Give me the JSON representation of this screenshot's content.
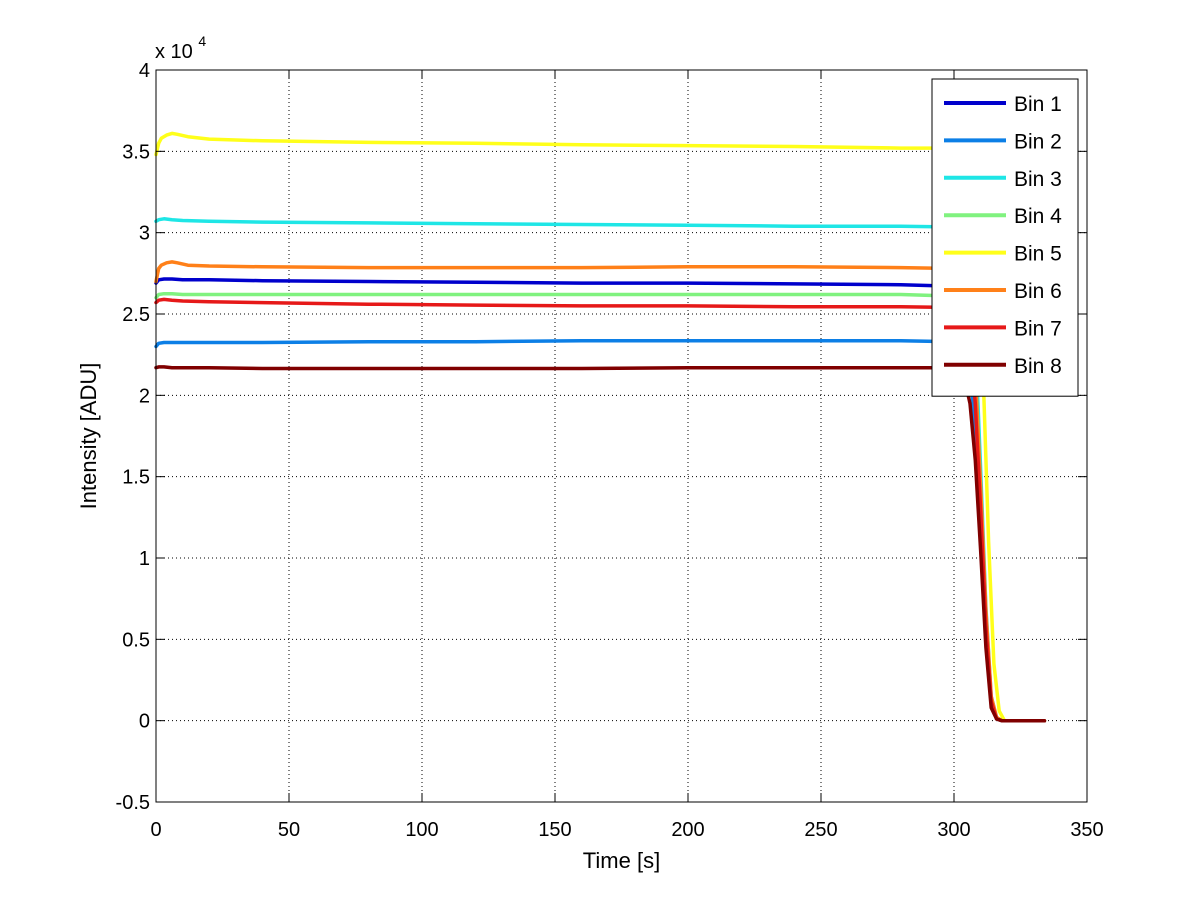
{
  "chart_data": {
    "type": "line",
    "title": "",
    "xlabel": "Time [s]",
    "ylabel": "Intensity [ADU]",
    "xlim": [
      0,
      350
    ],
    "ylim": [
      -0.5,
      4
    ],
    "y_multiplier_text": "x 10",
    "y_multiplier_exponent": "4",
    "x_ticks": [
      0,
      50,
      100,
      150,
      200,
      250,
      300,
      350
    ],
    "y_ticks": [
      -0.5,
      0,
      0.5,
      1,
      1.5,
      2,
      2.5,
      3,
      3.5,
      4
    ],
    "x_tick_labels": [
      "0",
      "50",
      "100",
      "150",
      "200",
      "250",
      "300",
      "350"
    ],
    "y_tick_labels": [
      "-0.5",
      "0",
      "0.5",
      "1",
      "1.5",
      "2",
      "2.5",
      "3",
      "3.5",
      "4"
    ],
    "grid": true,
    "legend_position": "top-right",
    "series": [
      {
        "name": "Bin 1",
        "color": "#0000cc",
        "x": [
          0,
          1,
          3,
          6,
          10,
          20,
          40,
          80,
          120,
          160,
          200,
          240,
          280,
          300,
          306,
          308,
          310,
          312,
          314,
          316,
          318,
          320,
          325,
          334
        ],
        "y": [
          2.69,
          2.71,
          2.715,
          2.715,
          2.71,
          2.71,
          2.705,
          2.7,
          2.695,
          2.69,
          2.69,
          2.685,
          2.68,
          2.67,
          2.45,
          2.05,
          1.35,
          0.6,
          0.12,
          0.01,
          0.0,
          0.0,
          0.0,
          0.0
        ]
      },
      {
        "name": "Bin 2",
        "color": "#0c7fe6",
        "x": [
          0,
          1,
          3,
          6,
          10,
          20,
          40,
          80,
          120,
          160,
          200,
          240,
          280,
          300,
          306,
          308,
          310,
          312,
          314,
          316,
          318,
          320,
          325,
          334
        ],
        "y": [
          2.3,
          2.32,
          2.325,
          2.325,
          2.325,
          2.325,
          2.325,
          2.33,
          2.33,
          2.335,
          2.335,
          2.335,
          2.335,
          2.33,
          2.15,
          1.8,
          1.2,
          0.55,
          0.1,
          0.01,
          0.0,
          0.0,
          0.0,
          0.0
        ]
      },
      {
        "name": "Bin 3",
        "color": "#1ee6e6",
        "x": [
          0,
          1,
          3,
          6,
          10,
          20,
          40,
          80,
          120,
          160,
          200,
          240,
          280,
          300,
          306,
          308,
          310,
          312,
          314,
          316,
          318,
          320,
          325,
          334
        ],
        "y": [
          3.07,
          3.08,
          3.085,
          3.08,
          3.075,
          3.07,
          3.065,
          3.06,
          3.055,
          3.05,
          3.045,
          3.04,
          3.04,
          3.035,
          2.8,
          2.35,
          1.55,
          0.7,
          0.15,
          0.02,
          0.0,
          0.0,
          0.0,
          0.0
        ]
      },
      {
        "name": "Bin 4",
        "color": "#80f27f",
        "x": [
          0,
          1,
          3,
          6,
          10,
          20,
          40,
          80,
          120,
          160,
          200,
          240,
          280,
          300,
          306,
          308,
          310,
          312,
          314,
          316,
          318,
          320,
          325,
          334
        ],
        "y": [
          2.6,
          2.62,
          2.625,
          2.625,
          2.62,
          2.62,
          2.62,
          2.62,
          2.62,
          2.62,
          2.62,
          2.62,
          2.62,
          2.61,
          2.4,
          2.0,
          1.35,
          0.6,
          0.12,
          0.01,
          0.0,
          0.0,
          0.0,
          0.0
        ]
      },
      {
        "name": "Bin 5",
        "color": "#ffff1a",
        "x": [
          0,
          1,
          2,
          4,
          6,
          8,
          12,
          20,
          40,
          80,
          120,
          160,
          200,
          240,
          280,
          300,
          306,
          309,
          311,
          313,
          315,
          317,
          319,
          321,
          325,
          334
        ],
        "y": [
          3.48,
          3.55,
          3.58,
          3.6,
          3.61,
          3.605,
          3.59,
          3.575,
          3.565,
          3.555,
          3.55,
          3.54,
          3.535,
          3.53,
          3.52,
          3.52,
          3.3,
          2.9,
          2.1,
          1.1,
          0.35,
          0.06,
          0.0,
          0.0,
          0.0,
          0.0
        ]
      },
      {
        "name": "Bin 6",
        "color": "#ff8019",
        "x": [
          0,
          1,
          2,
          4,
          6,
          8,
          12,
          20,
          40,
          80,
          120,
          160,
          200,
          240,
          280,
          300,
          306,
          308,
          310,
          312,
          314,
          316,
          318,
          320,
          325,
          334
        ],
        "y": [
          2.7,
          2.78,
          2.8,
          2.815,
          2.82,
          2.815,
          2.8,
          2.795,
          2.79,
          2.785,
          2.785,
          2.785,
          2.79,
          2.79,
          2.785,
          2.78,
          2.55,
          2.15,
          1.45,
          0.68,
          0.15,
          0.02,
          0.0,
          0.0,
          0.0,
          0.0
        ]
      },
      {
        "name": "Bin 7",
        "color": "#e61919",
        "x": [
          0,
          1,
          3,
          6,
          10,
          20,
          40,
          80,
          120,
          160,
          200,
          240,
          280,
          300,
          306,
          308,
          310,
          312,
          314,
          316,
          318,
          320,
          325,
          334
        ],
        "y": [
          2.57,
          2.585,
          2.59,
          2.585,
          2.58,
          2.575,
          2.57,
          2.56,
          2.555,
          2.55,
          2.55,
          2.545,
          2.545,
          2.54,
          2.33,
          1.95,
          1.3,
          0.58,
          0.12,
          0.01,
          0.0,
          0.0,
          0.0,
          0.0
        ]
      },
      {
        "name": "Bin 8",
        "color": "#800000",
        "x": [
          0,
          1,
          3,
          6,
          10,
          20,
          40,
          80,
          120,
          160,
          200,
          240,
          280,
          300,
          304,
          306,
          308,
          310,
          312,
          314,
          316,
          318,
          320,
          325,
          334
        ],
        "y": [
          2.17,
          2.175,
          2.175,
          2.17,
          2.17,
          2.17,
          2.165,
          2.165,
          2.165,
          2.165,
          2.17,
          2.17,
          2.17,
          2.17,
          2.1,
          1.95,
          1.6,
          1.05,
          0.45,
          0.08,
          0.01,
          0.0,
          0.0,
          0.0,
          0.0
        ]
      }
    ]
  }
}
